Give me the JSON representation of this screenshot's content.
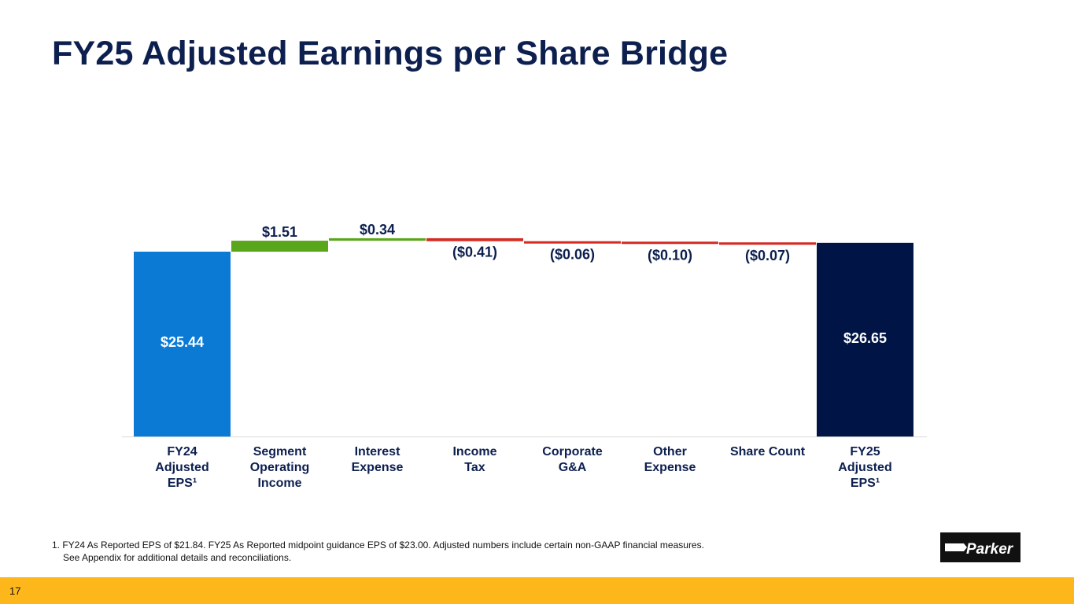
{
  "slide": {
    "title": "FY25 Adjusted Earnings per Share Bridge",
    "page_number": "17",
    "footnote_line1": "1. FY24 As Reported EPS of $21.84. FY25 As Reported midpoint guidance EPS of $23.00.  Adjusted numbers include certain non-GAAP financial measures.",
    "footnote_line2": "See Appendix for additional details and reconciliations.",
    "logo_text": "Parker"
  },
  "colors": {
    "start": "#0a7ad4",
    "increase": "#5aa61a",
    "decrease": "#d42a22",
    "end": "#001545",
    "title": "#0c1f4f",
    "footer": "#fdb71a"
  },
  "chart_data": {
    "type": "waterfall",
    "title": "FY25 Adjusted Earnings per Share Bridge",
    "categories": [
      [
        "FY24",
        "Adjusted",
        "EPS¹"
      ],
      [
        "Segment",
        "Operating",
        "Income"
      ],
      [
        "Interest",
        "Expense"
      ],
      [
        "Income",
        "Tax"
      ],
      [
        "Corporate",
        "G&A"
      ],
      [
        "Other",
        "Expense"
      ],
      [
        "Share Count"
      ],
      [
        "FY25",
        "Adjusted",
        "EPS¹"
      ]
    ],
    "values": [
      25.44,
      1.51,
      0.34,
      -0.41,
      -0.06,
      -0.1,
      -0.07,
      26.65
    ],
    "kinds": [
      "start",
      "increase",
      "increase",
      "decrease",
      "decrease",
      "decrease",
      "decrease",
      "end"
    ],
    "labels": [
      "$25.44",
      "$1.51",
      "$0.34",
      "($0.41)",
      "($0.06)",
      "($0.10)",
      "($0.07)",
      "$26.65"
    ]
  }
}
